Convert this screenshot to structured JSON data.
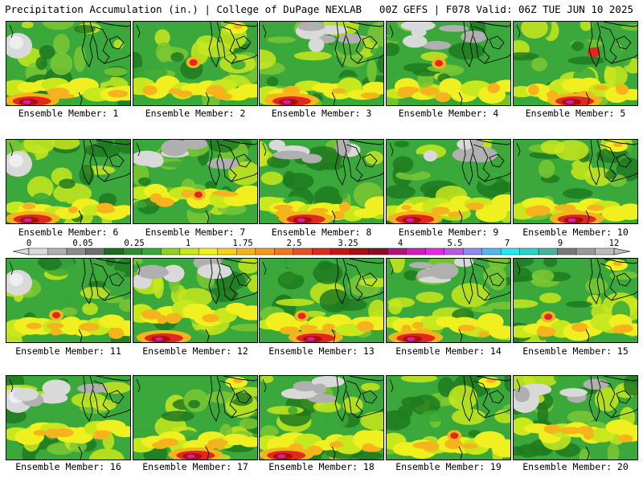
{
  "header": {
    "title_left": "Precipitation Accumulation (in.) | College of DuPage NEXLAB",
    "title_right": "00Z GEFS | F078 Valid: 06Z TUE JUN 10 2025"
  },
  "members": [
    {
      "label": "Ensemble Member: 1",
      "pattern": [
        "band-south",
        "heavy-sw",
        "blob-nw-gray"
      ]
    },
    {
      "label": "Ensemble Member: 2",
      "pattern": [
        "band-south",
        "blob-center-red",
        "blob-ne-yellow"
      ]
    },
    {
      "label": "Ensemble Member: 3",
      "pattern": [
        "band-south",
        "heavy-sw",
        "gray-north"
      ]
    },
    {
      "label": "Ensemble Member: 4",
      "pattern": [
        "band-south",
        "blob-center-red",
        "gray-north"
      ]
    },
    {
      "label": "Ensemble Member: 5",
      "pattern": [
        "band-south",
        "heavy-s",
        "blob-ne-red"
      ]
    },
    {
      "label": "Ensemble Member: 6",
      "pattern": [
        "band-south",
        "heavy-sw",
        "blob-nw-gray"
      ]
    },
    {
      "label": "Ensemble Member: 7",
      "pattern": [
        "band-center",
        "blob-center-red",
        "gray-north"
      ]
    },
    {
      "label": "Ensemble Member: 8",
      "pattern": [
        "band-south",
        "heavy-s",
        "gray-north"
      ]
    },
    {
      "label": "Ensemble Member: 9",
      "pattern": [
        "band-south",
        "heavy-sw",
        "gray-north"
      ]
    },
    {
      "label": "Ensemble Member: 10",
      "pattern": [
        "band-south",
        "heavy-s",
        "blob-ne-yellow"
      ]
    },
    {
      "label": "Ensemble Member: 11",
      "pattern": [
        "band-south",
        "blob-center-red",
        "blob-nw-gray"
      ]
    },
    {
      "label": "Ensemble Member: 12",
      "pattern": [
        "band-center",
        "heavy-sw",
        "gray-north"
      ]
    },
    {
      "label": "Ensemble Member: 13",
      "pattern": [
        "band-south",
        "blob-center-red",
        "heavy-s"
      ]
    },
    {
      "label": "Ensemble Member: 14",
      "pattern": [
        "band-south",
        "heavy-sw",
        "gray-north"
      ]
    },
    {
      "label": "Ensemble Member: 15",
      "pattern": [
        "band-south",
        "blob-center-red",
        "blob-ne-yellow"
      ]
    },
    {
      "label": "Ensemble Member: 16",
      "pattern": [
        "band-center",
        "blob-nw-gray",
        "gray-north"
      ]
    },
    {
      "label": "Ensemble Member: 17",
      "pattern": [
        "band-south",
        "heavy-s",
        "blob-ne-yellow"
      ]
    },
    {
      "label": "Ensemble Member: 18",
      "pattern": [
        "band-south",
        "heavy-sw",
        "gray-north"
      ]
    },
    {
      "label": "Ensemble Member: 19",
      "pattern": [
        "band-south",
        "blob-center-red",
        "blob-ne-yellow"
      ]
    },
    {
      "label": "Ensemble Member: 20",
      "pattern": [
        "band-center",
        "blob-nw-gray",
        "gray-north"
      ]
    }
  ],
  "legend": {
    "labels": [
      "0",
      "0.05",
      "0.25",
      "1",
      "1.75",
      "2.5",
      "3.25",
      "4",
      "5.5",
      "7",
      "9",
      "12"
    ],
    "colors": [
      "#d9d9d9",
      "#b0b0b0",
      "#8c8c8c",
      "#6e6e6e",
      "#1f6b1f",
      "#2e8b2e",
      "#3aa83a",
      "#8fd11f",
      "#c8e81e",
      "#f0f020",
      "#f5d21e",
      "#f5b41e",
      "#f5961e",
      "#f0781e",
      "#e8501e",
      "#e0281e",
      "#c81414",
      "#a81010",
      "#8c0c28",
      "#b01478",
      "#d21eb4",
      "#e628e6",
      "#b45ae6",
      "#8c8cf0",
      "#5ab4f0",
      "#28e6f0",
      "#28d2c8",
      "#46b4a0",
      "#7a7a7a",
      "#9a9a9a",
      "#bcbcbc"
    ]
  },
  "colors": {
    "green_dark": "#1f7a1f",
    "green": "#3aa83a",
    "green_light": "#7cc832",
    "yellow_green": "#c8e81e",
    "yellow": "#f0f020",
    "orange": "#f5b41e",
    "red": "#e0281e",
    "dark_red": "#a81010",
    "magenta": "#d21eb4",
    "gray": "#b0b0b0",
    "light_gray": "#d9d9d9"
  }
}
